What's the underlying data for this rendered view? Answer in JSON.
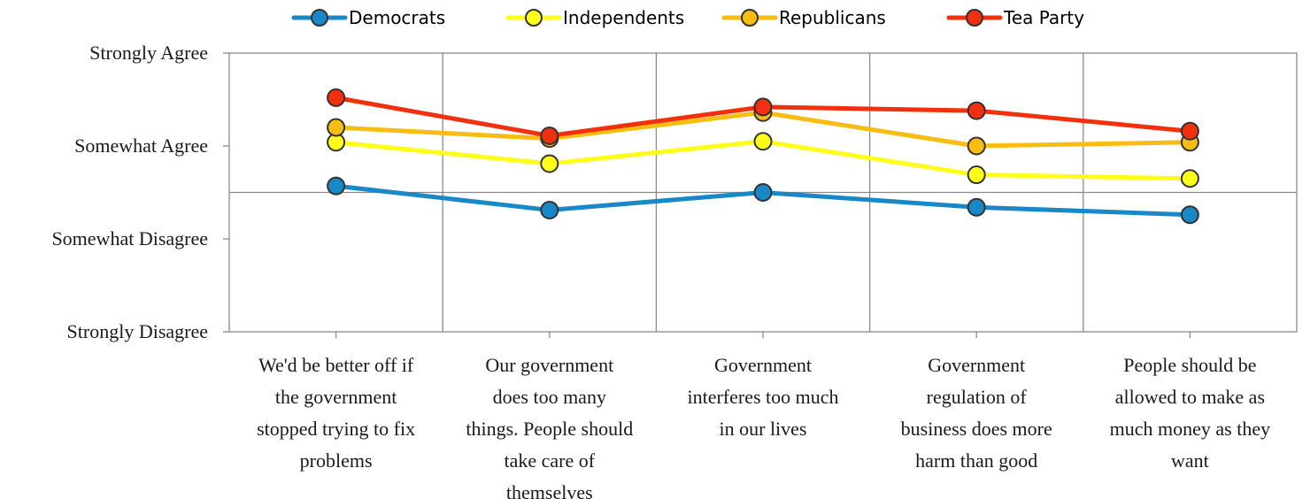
{
  "chart_data": {
    "type": "line",
    "title": "",
    "xlabel": "",
    "ylabel": "",
    "ylim": [
      0,
      3
    ],
    "y_ticks": [
      {
        "value": 3,
        "label": "Strongly Agree"
      },
      {
        "value": 2,
        "label": "Somewhat Agree"
      },
      {
        "value": 1,
        "label": "Somewhat Disagree"
      },
      {
        "value": 0,
        "label": "Strongly Disagree"
      }
    ],
    "categories": [
      [
        "We'd be better off  if",
        "the government",
        "stopped trying to fix",
        "problems"
      ],
      [
        "Our government",
        "does too many",
        "things. People should",
        "take care of",
        "themselves"
      ],
      [
        "Government",
        "interferes too much",
        "in our lives"
      ],
      [
        "Government",
        "regulation of",
        "business does more",
        "harm than good"
      ],
      [
        "People should be",
        "allowed to make as",
        "much money as they",
        "want"
      ]
    ],
    "series": [
      {
        "name": "Democrats",
        "color": "#1a87c6",
        "values": [
          1.57,
          1.31,
          1.5,
          1.34,
          1.26
        ]
      },
      {
        "name": "Independents",
        "color": "#ffff1a",
        "values": [
          2.04,
          1.81,
          2.05,
          1.69,
          1.65
        ]
      },
      {
        "name": "Republicans",
        "color": "#f7bd12",
        "values": [
          2.2,
          2.08,
          2.36,
          2.0,
          2.04
        ]
      },
      {
        "name": "Tea Party",
        "color": "#f2300e",
        "values": [
          2.52,
          2.11,
          2.42,
          2.38,
          2.16
        ]
      }
    ],
    "grid": true,
    "midline": 1.5,
    "legend_position": "top"
  }
}
